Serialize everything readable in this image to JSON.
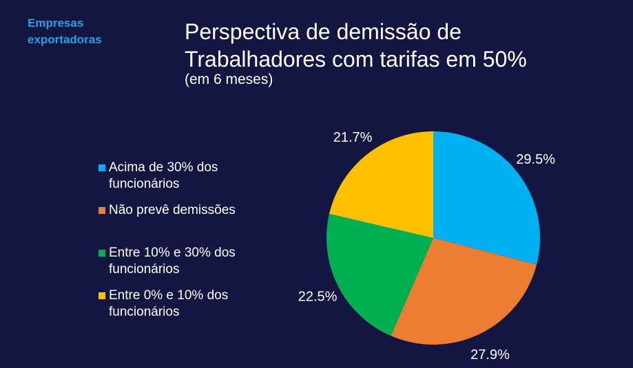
{
  "header": {
    "tag": "Empresas exportadoras",
    "title": "Perspectiva de demissão de Trabalhadores com tarifas em 50%",
    "subtitle": "(em 6 meses)"
  },
  "chart_data": {
    "type": "pie",
    "title": "Perspectiva de demissão de Trabalhadores com tarifas em 50%",
    "subtitle": "(em 6 meses)",
    "legend_placement": "left",
    "slices": [
      {
        "label": "Acima de 30% dos funcionários",
        "value": 29.5,
        "display": "29.5%",
        "color": "#00b0f0"
      },
      {
        "label": "Não prevê demissões",
        "value": 27.9,
        "display": "27.9%",
        "color": "#ed7d31"
      },
      {
        "label": "Entre 10% e 30% dos funcionários",
        "value": 22.5,
        "display": "22.5%",
        "color": "#00b050"
      },
      {
        "label": "Entre 0% e 10% dos funcionários",
        "value": 21.7,
        "display": "21.7%",
        "color": "#ffc000"
      }
    ]
  }
}
